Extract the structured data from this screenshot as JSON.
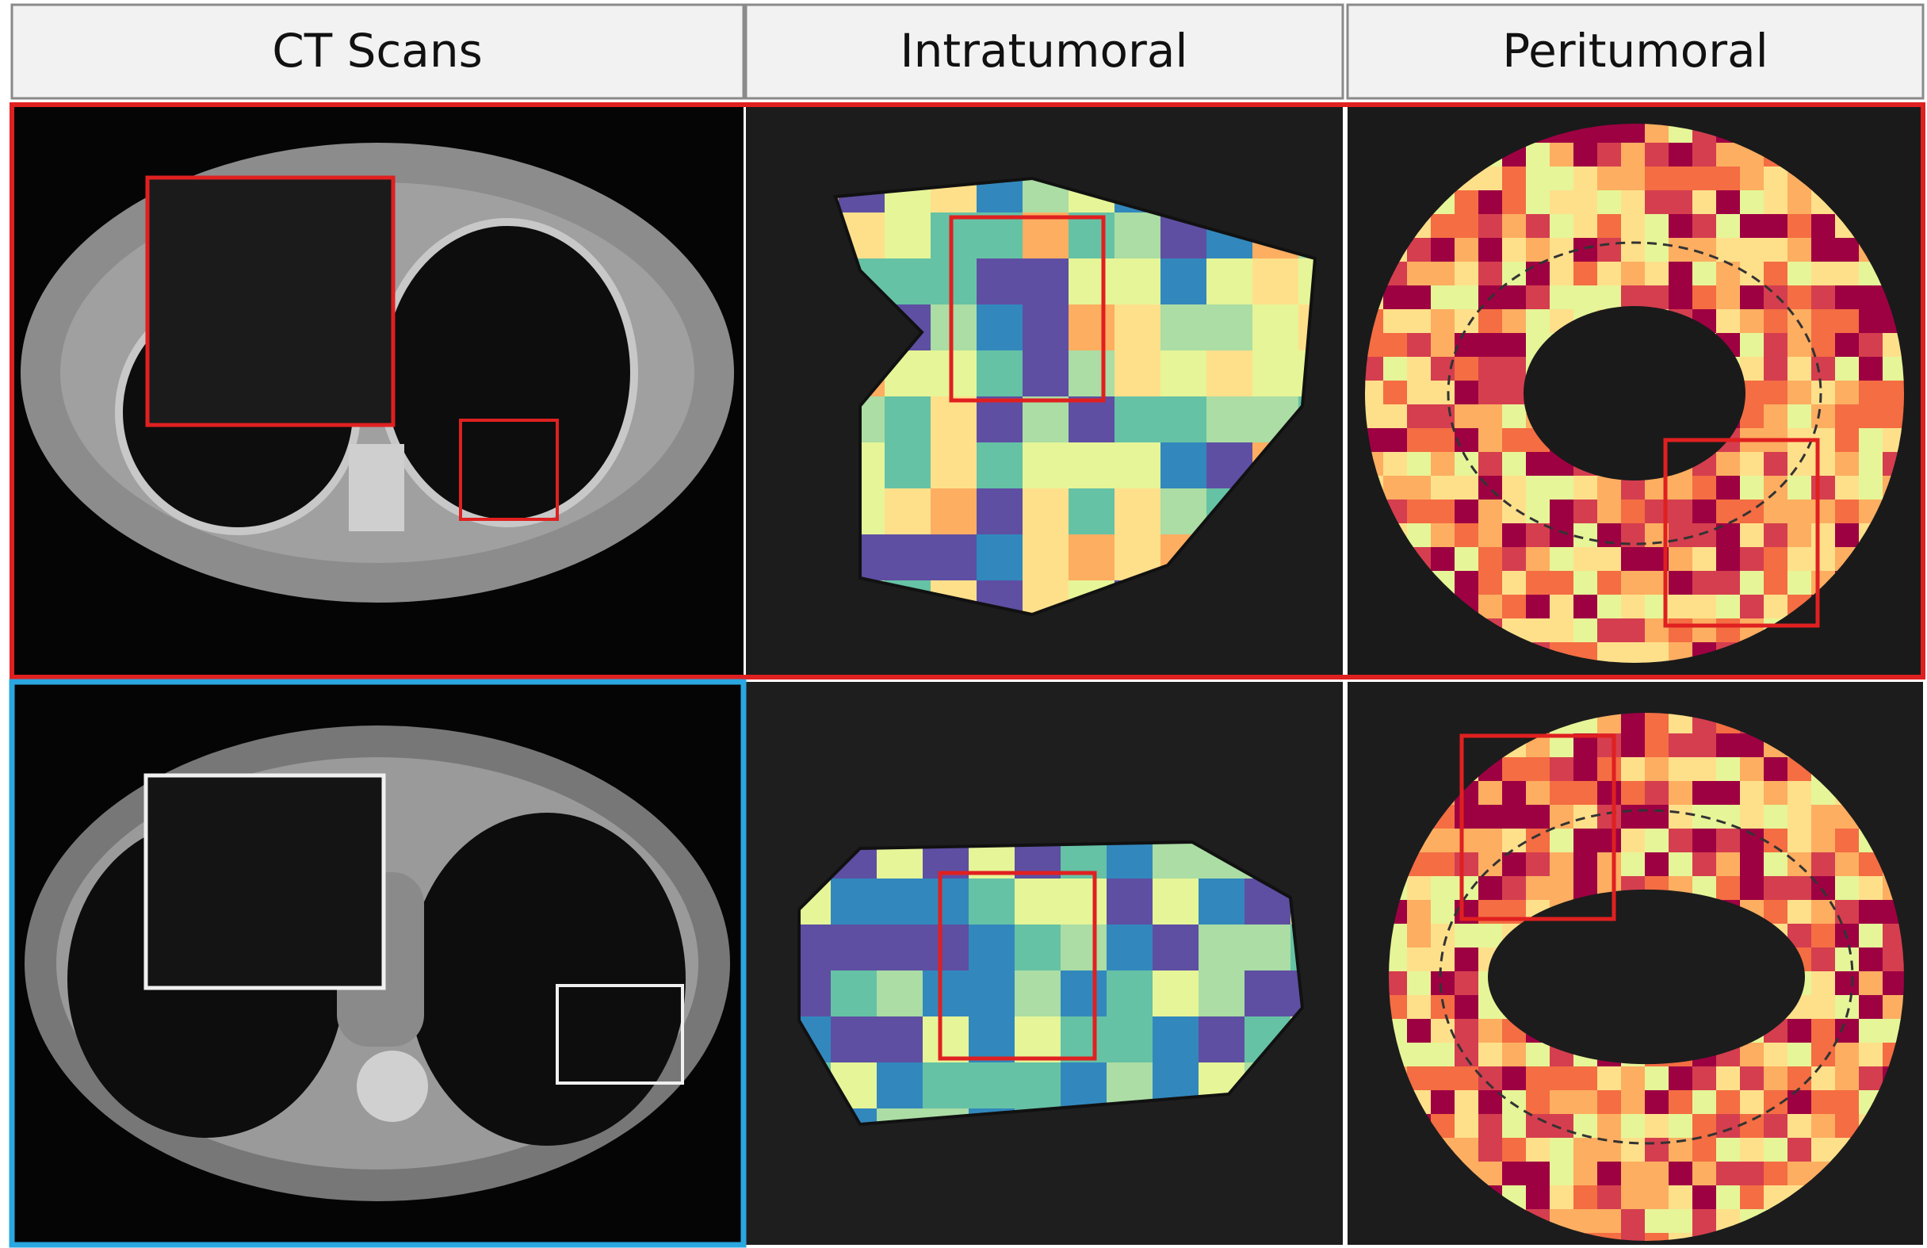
{
  "header": {
    "columns": [
      "CT Scans",
      "Intratumoral",
      "Peritumoral"
    ]
  }
}
